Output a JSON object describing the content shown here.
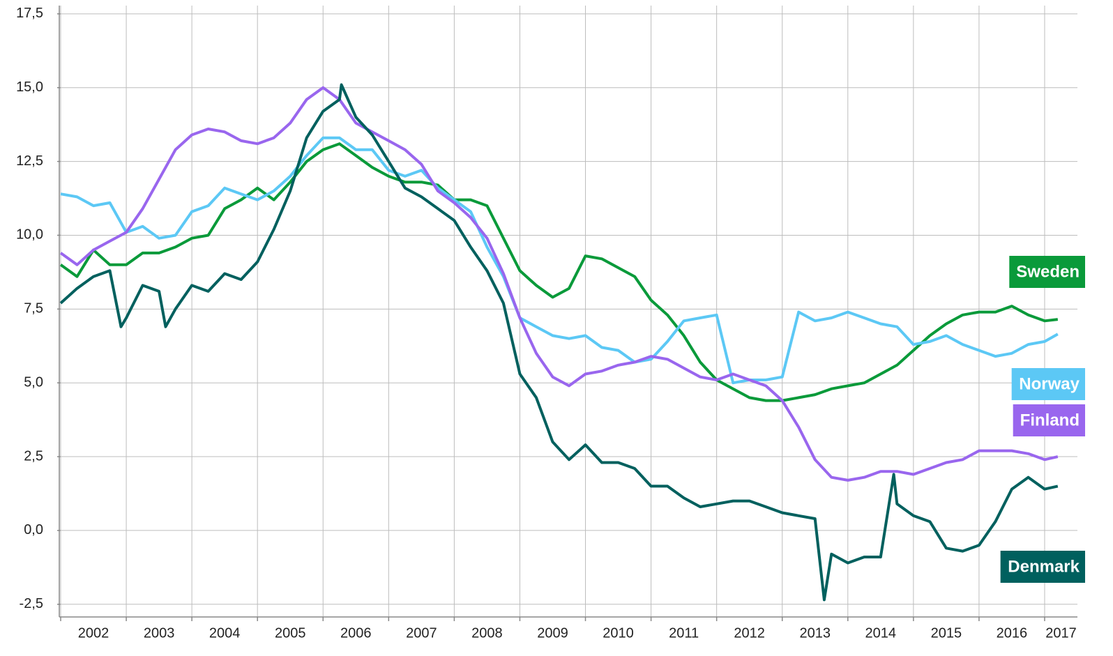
{
  "chart_data": {
    "type": "line",
    "x": [
      2002,
      2002.25,
      2002.5,
      2002.75,
      2003,
      2003.25,
      2003.5,
      2003.75,
      2004,
      2004.25,
      2004.5,
      2004.75,
      2005,
      2005.25,
      2005.5,
      2005.75,
      2006,
      2006.25,
      2006.5,
      2006.75,
      2007,
      2007.25,
      2007.5,
      2007.75,
      2008,
      2008.25,
      2008.5,
      2008.75,
      2009,
      2009.25,
      2009.5,
      2009.75,
      2010,
      2010.25,
      2010.5,
      2010.75,
      2011,
      2011.25,
      2011.5,
      2011.75,
      2012,
      2012.25,
      2012.5,
      2012.75,
      2013,
      2013.25,
      2013.5,
      2013.75,
      2014,
      2014.25,
      2014.5,
      2014.75,
      2015,
      2015.25,
      2015.5,
      2015.75,
      2016,
      2016.25,
      2016.5,
      2016.75,
      2017,
      2017.2
    ],
    "series": [
      {
        "name": "Sweden",
        "color": "#0a9a3a",
        "values": [
          9.0,
          8.6,
          9.5,
          9.0,
          9.0,
          9.4,
          9.4,
          9.6,
          9.9,
          10.0,
          10.9,
          11.2,
          11.6,
          11.2,
          11.8,
          12.5,
          12.9,
          13.1,
          12.7,
          12.3,
          12.0,
          11.8,
          11.8,
          11.7,
          11.2,
          11.2,
          11.0,
          9.9,
          8.8,
          8.3,
          7.9,
          8.2,
          9.3,
          9.2,
          8.9,
          8.6,
          7.8,
          7.3,
          6.6,
          5.7,
          5.1,
          4.8,
          4.5,
          4.4,
          4.4,
          4.5,
          4.6,
          4.8,
          4.9,
          5.0,
          5.3,
          5.6,
          6.1,
          6.6,
          7.0,
          7.3,
          7.4,
          7.4,
          7.6,
          7.3,
          7.1,
          7.15
        ]
      },
      {
        "name": "Norway",
        "color": "#5cc8f5",
        "values": [
          11.4,
          11.3,
          11.0,
          11.1,
          10.1,
          10.3,
          9.9,
          10.0,
          10.8,
          11.0,
          11.6,
          11.4,
          11.2,
          11.5,
          12.0,
          12.7,
          13.3,
          13.3,
          12.9,
          12.9,
          12.2,
          12.0,
          12.2,
          11.6,
          11.2,
          10.8,
          9.6,
          8.6,
          7.2,
          6.9,
          6.6,
          6.5,
          6.6,
          6.2,
          6.1,
          5.7,
          5.8,
          6.4,
          7.1,
          7.2,
          7.3,
          5.0,
          5.1,
          5.1,
          5.2,
          7.4,
          7.1,
          7.2,
          7.4,
          7.2,
          7.0,
          6.9,
          6.3,
          6.4,
          6.6,
          6.3,
          6.1,
          5.9,
          6.0,
          6.3,
          6.4,
          6.65
        ]
      },
      {
        "name": "Finland",
        "color": "#9966ee",
        "values": [
          9.4,
          9.0,
          9.5,
          9.8,
          10.1,
          10.9,
          11.9,
          12.9,
          13.4,
          13.6,
          13.5,
          13.2,
          13.1,
          13.3,
          13.8,
          14.6,
          15.0,
          14.6,
          13.8,
          13.5,
          13.2,
          12.9,
          12.4,
          11.5,
          11.1,
          10.6,
          9.9,
          8.7,
          7.2,
          6.0,
          5.2,
          4.9,
          5.3,
          5.4,
          5.6,
          5.7,
          5.9,
          5.8,
          5.5,
          5.2,
          5.1,
          5.3,
          5.1,
          4.9,
          4.4,
          3.5,
          2.4,
          1.8,
          1.7,
          1.8,
          2.0,
          2.0,
          1.9,
          2.1,
          2.3,
          2.4,
          2.7,
          2.7,
          2.7,
          2.6,
          2.4,
          2.5
        ]
      },
      {
        "name": "Denmark",
        "color": "#00605e",
        "x": [
          2002,
          2002.25,
          2002.5,
          2002.75,
          2002.92,
          2003,
          2003.25,
          2003.5,
          2003.6,
          2003.75,
          2004,
          2004.25,
          2004.5,
          2004.75,
          2005,
          2005.25,
          2005.5,
          2005.75,
          2006,
          2006.25,
          2006.28,
          2006.5,
          2006.75,
          2007,
          2007.25,
          2007.5,
          2007.75,
          2008,
          2008.25,
          2008.5,
          2008.75,
          2009,
          2009.25,
          2009.5,
          2009.75,
          2010,
          2010.25,
          2010.5,
          2010.75,
          2011,
          2011.25,
          2011.5,
          2011.75,
          2012,
          2012.25,
          2012.5,
          2012.75,
          2013,
          2013.25,
          2013.5,
          2013.64,
          2013.75,
          2014,
          2014.25,
          2014.5,
          2014.7,
          2014.75,
          2015,
          2015.25,
          2015.5,
          2015.75,
          2016,
          2016.25,
          2016.5,
          2016.75,
          2017,
          2017.2
        ],
        "values": [
          7.7,
          8.2,
          8.6,
          8.8,
          6.9,
          7.2,
          8.3,
          8.1,
          6.9,
          7.5,
          8.3,
          8.1,
          8.7,
          8.5,
          9.1,
          10.2,
          11.5,
          13.3,
          14.2,
          14.6,
          15.1,
          14.0,
          13.4,
          12.5,
          11.6,
          11.3,
          10.9,
          10.5,
          9.6,
          8.8,
          7.7,
          5.3,
          4.5,
          3.0,
          2.4,
          2.9,
          2.3,
          2.3,
          2.1,
          1.5,
          1.5,
          1.1,
          0.8,
          0.9,
          1.0,
          1.0,
          0.8,
          0.6,
          0.5,
          0.4,
          -2.35,
          -0.8,
          -1.1,
          -0.9,
          -0.9,
          1.9,
          0.9,
          0.5,
          0.3,
          -0.6,
          -0.7,
          -0.5,
          0.3,
          1.4,
          1.8,
          1.4,
          1.5
        ]
      }
    ],
    "xlim": [
      2002,
      2017.5
    ],
    "xticks": [
      2002,
      2003,
      2004,
      2005,
      2006,
      2007,
      2008,
      2009,
      2010,
      2011,
      2012,
      2013,
      2014,
      2015,
      2016,
      2017
    ],
    "ylim": [
      -2.93,
      17.78
    ],
    "yticks": [
      {
        "value": -2.5,
        "label": "-2,5"
      },
      {
        "value": 0,
        "label": "0,0"
      },
      {
        "value": 2.5,
        "label": "2,5"
      },
      {
        "value": 5,
        "label": "5,0"
      },
      {
        "value": 7.5,
        "label": "7,5"
      },
      {
        "value": 10,
        "label": "10,0"
      },
      {
        "value": 12.5,
        "label": "12,5"
      },
      {
        "value": 15,
        "label": "15,0"
      },
      {
        "value": 17.5,
        "label": "17,5"
      }
    ],
    "grid": true
  }
}
